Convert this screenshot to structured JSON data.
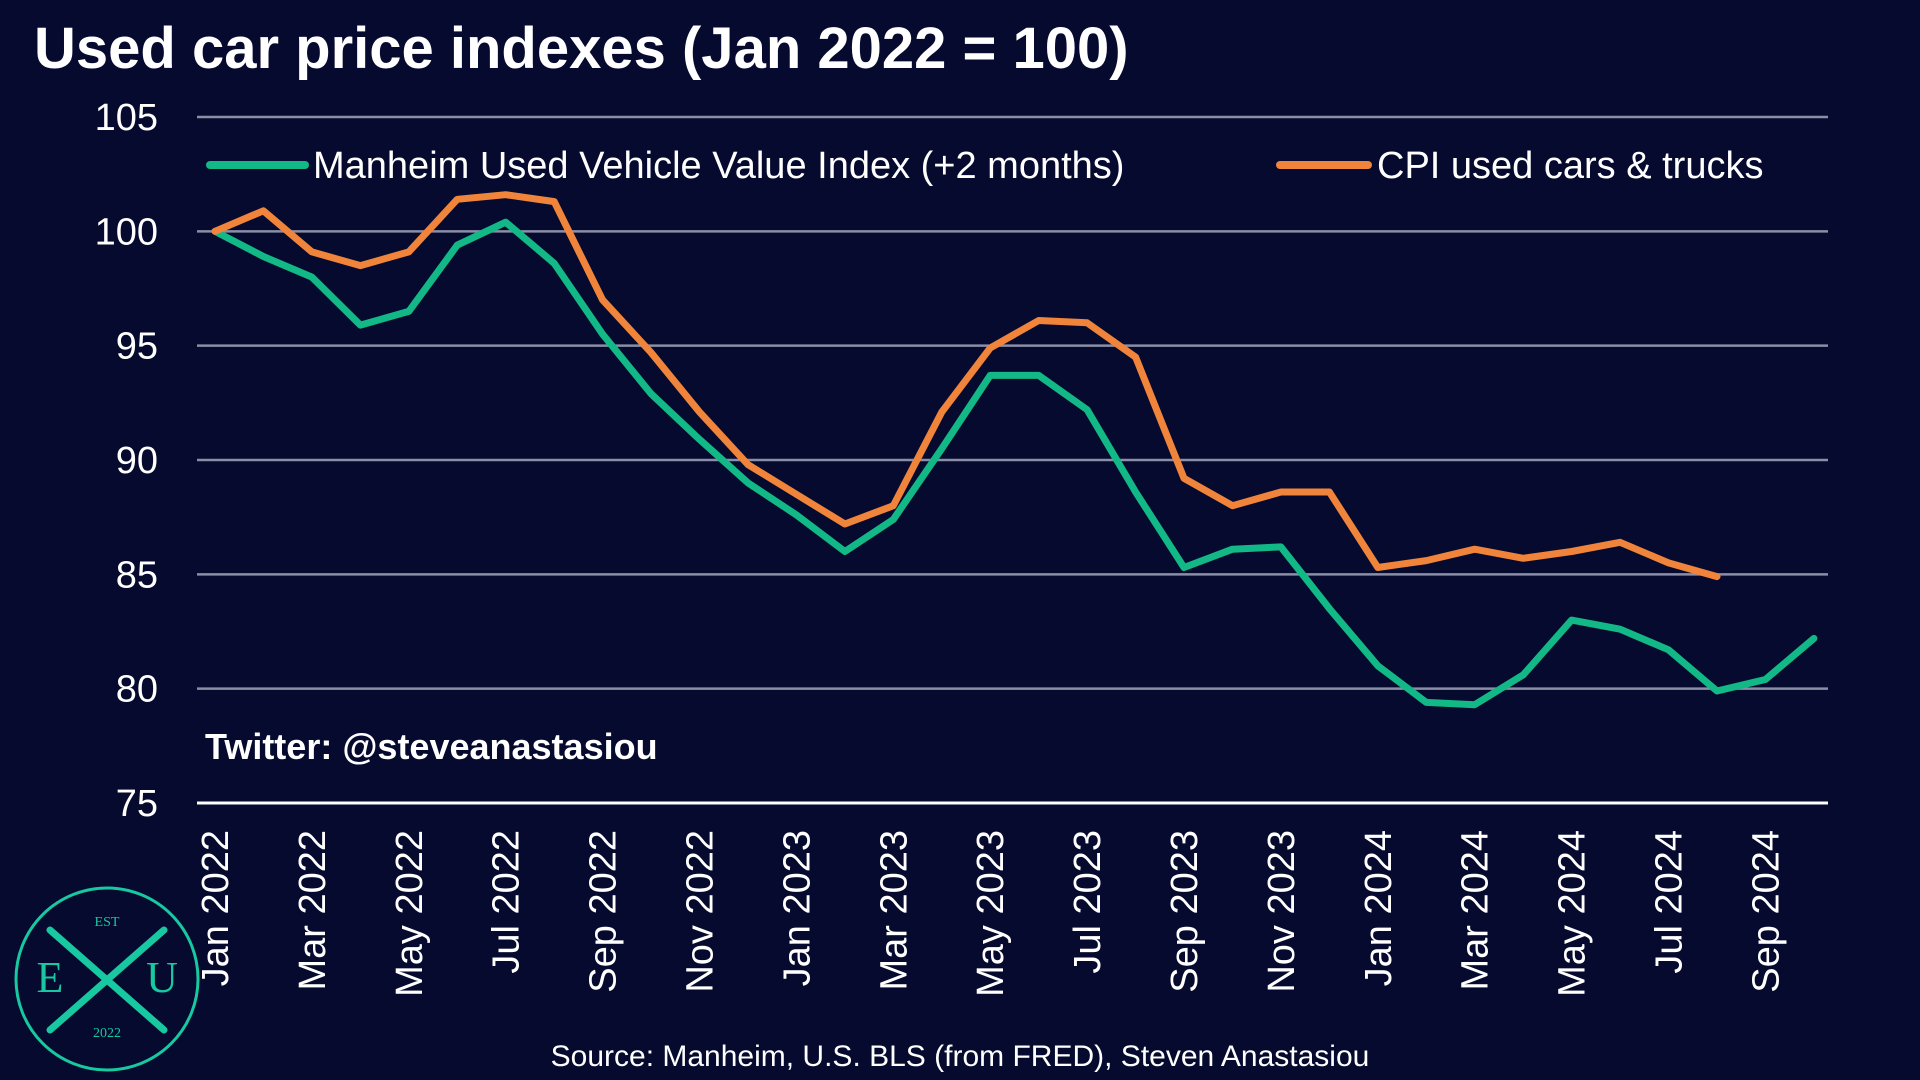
{
  "colors": {
    "background": "#050a2e",
    "grid": "#8a8ea6",
    "manheim": "#12b886",
    "cpi": "#f0843a",
    "text": "#ffffff",
    "logo": "#17c8a0"
  },
  "handle": "Twitter: @steveanastasiou",
  "source": "Source: Manheim, U.S. BLS (from FRED), Steven Anastasiou",
  "logo": {
    "top": "EST",
    "left": "E",
    "right": "U",
    "year": "2022",
    "icon": "exu-logo-icon"
  },
  "chart_data": {
    "type": "line",
    "title": "Used car price indexes (Jan 2022 = 100)",
    "xlabel": "",
    "ylabel": "",
    "ylim": [
      75,
      105
    ],
    "yticks": [
      75,
      80,
      85,
      90,
      95,
      100,
      105
    ],
    "grid": true,
    "legend_position": "top",
    "x": [
      "Jan 2022",
      "Feb 2022",
      "Mar 2022",
      "Apr 2022",
      "May 2022",
      "Jun 2022",
      "Jul 2022",
      "Aug 2022",
      "Sep 2022",
      "Oct 2022",
      "Nov 2022",
      "Dec 2022",
      "Jan 2023",
      "Feb 2023",
      "Mar 2023",
      "Apr 2023",
      "May 2023",
      "Jun 2023",
      "Jul 2023",
      "Aug 2023",
      "Sep 2023",
      "Oct 2023",
      "Nov 2023",
      "Dec 2023",
      "Jan 2024",
      "Feb 2024",
      "Mar 2024",
      "Apr 2024",
      "May 2024",
      "Jun 2024",
      "Jul 2024",
      "Aug 2024",
      "Sep 2024",
      "Oct 2024"
    ],
    "xtick_labels": [
      "Jan 2022",
      "Mar 2022",
      "May 2022",
      "Jul 2022",
      "Sep 2022",
      "Nov 2022",
      "Jan 2023",
      "Mar 2023",
      "May 2023",
      "Jul 2023",
      "Sep 2023",
      "Nov 2023",
      "Jan 2024",
      "Mar 2024",
      "May 2024",
      "Jul 2024",
      "Sep 2024"
    ],
    "series": [
      {
        "name": "Manheim Used Vehicle Value Index (+2 months)",
        "color": "#12b886",
        "values": [
          100.0,
          98.9,
          98.0,
          95.9,
          96.5,
          99.4,
          100.4,
          98.6,
          95.5,
          92.9,
          90.9,
          89.0,
          87.6,
          86.0,
          87.4,
          90.5,
          93.7,
          93.7,
          92.2,
          88.6,
          85.3,
          86.1,
          86.2,
          83.5,
          81.0,
          79.4,
          79.3,
          80.6,
          83.0,
          82.6,
          81.7,
          79.9,
          80.4,
          82.2
        ]
      },
      {
        "name": "CPI used cars & trucks",
        "color": "#f0843a",
        "values": [
          100.0,
          100.9,
          99.1,
          98.5,
          99.1,
          101.4,
          101.6,
          101.3,
          97.0,
          94.7,
          92.1,
          89.8,
          88.5,
          87.2,
          88.0,
          92.1,
          94.9,
          96.1,
          96.0,
          94.5,
          89.2,
          88.0,
          88.6,
          88.6,
          85.3,
          85.6,
          86.1,
          85.7,
          86.0,
          86.4,
          85.5,
          84.9,
          null,
          null
        ]
      }
    ]
  }
}
